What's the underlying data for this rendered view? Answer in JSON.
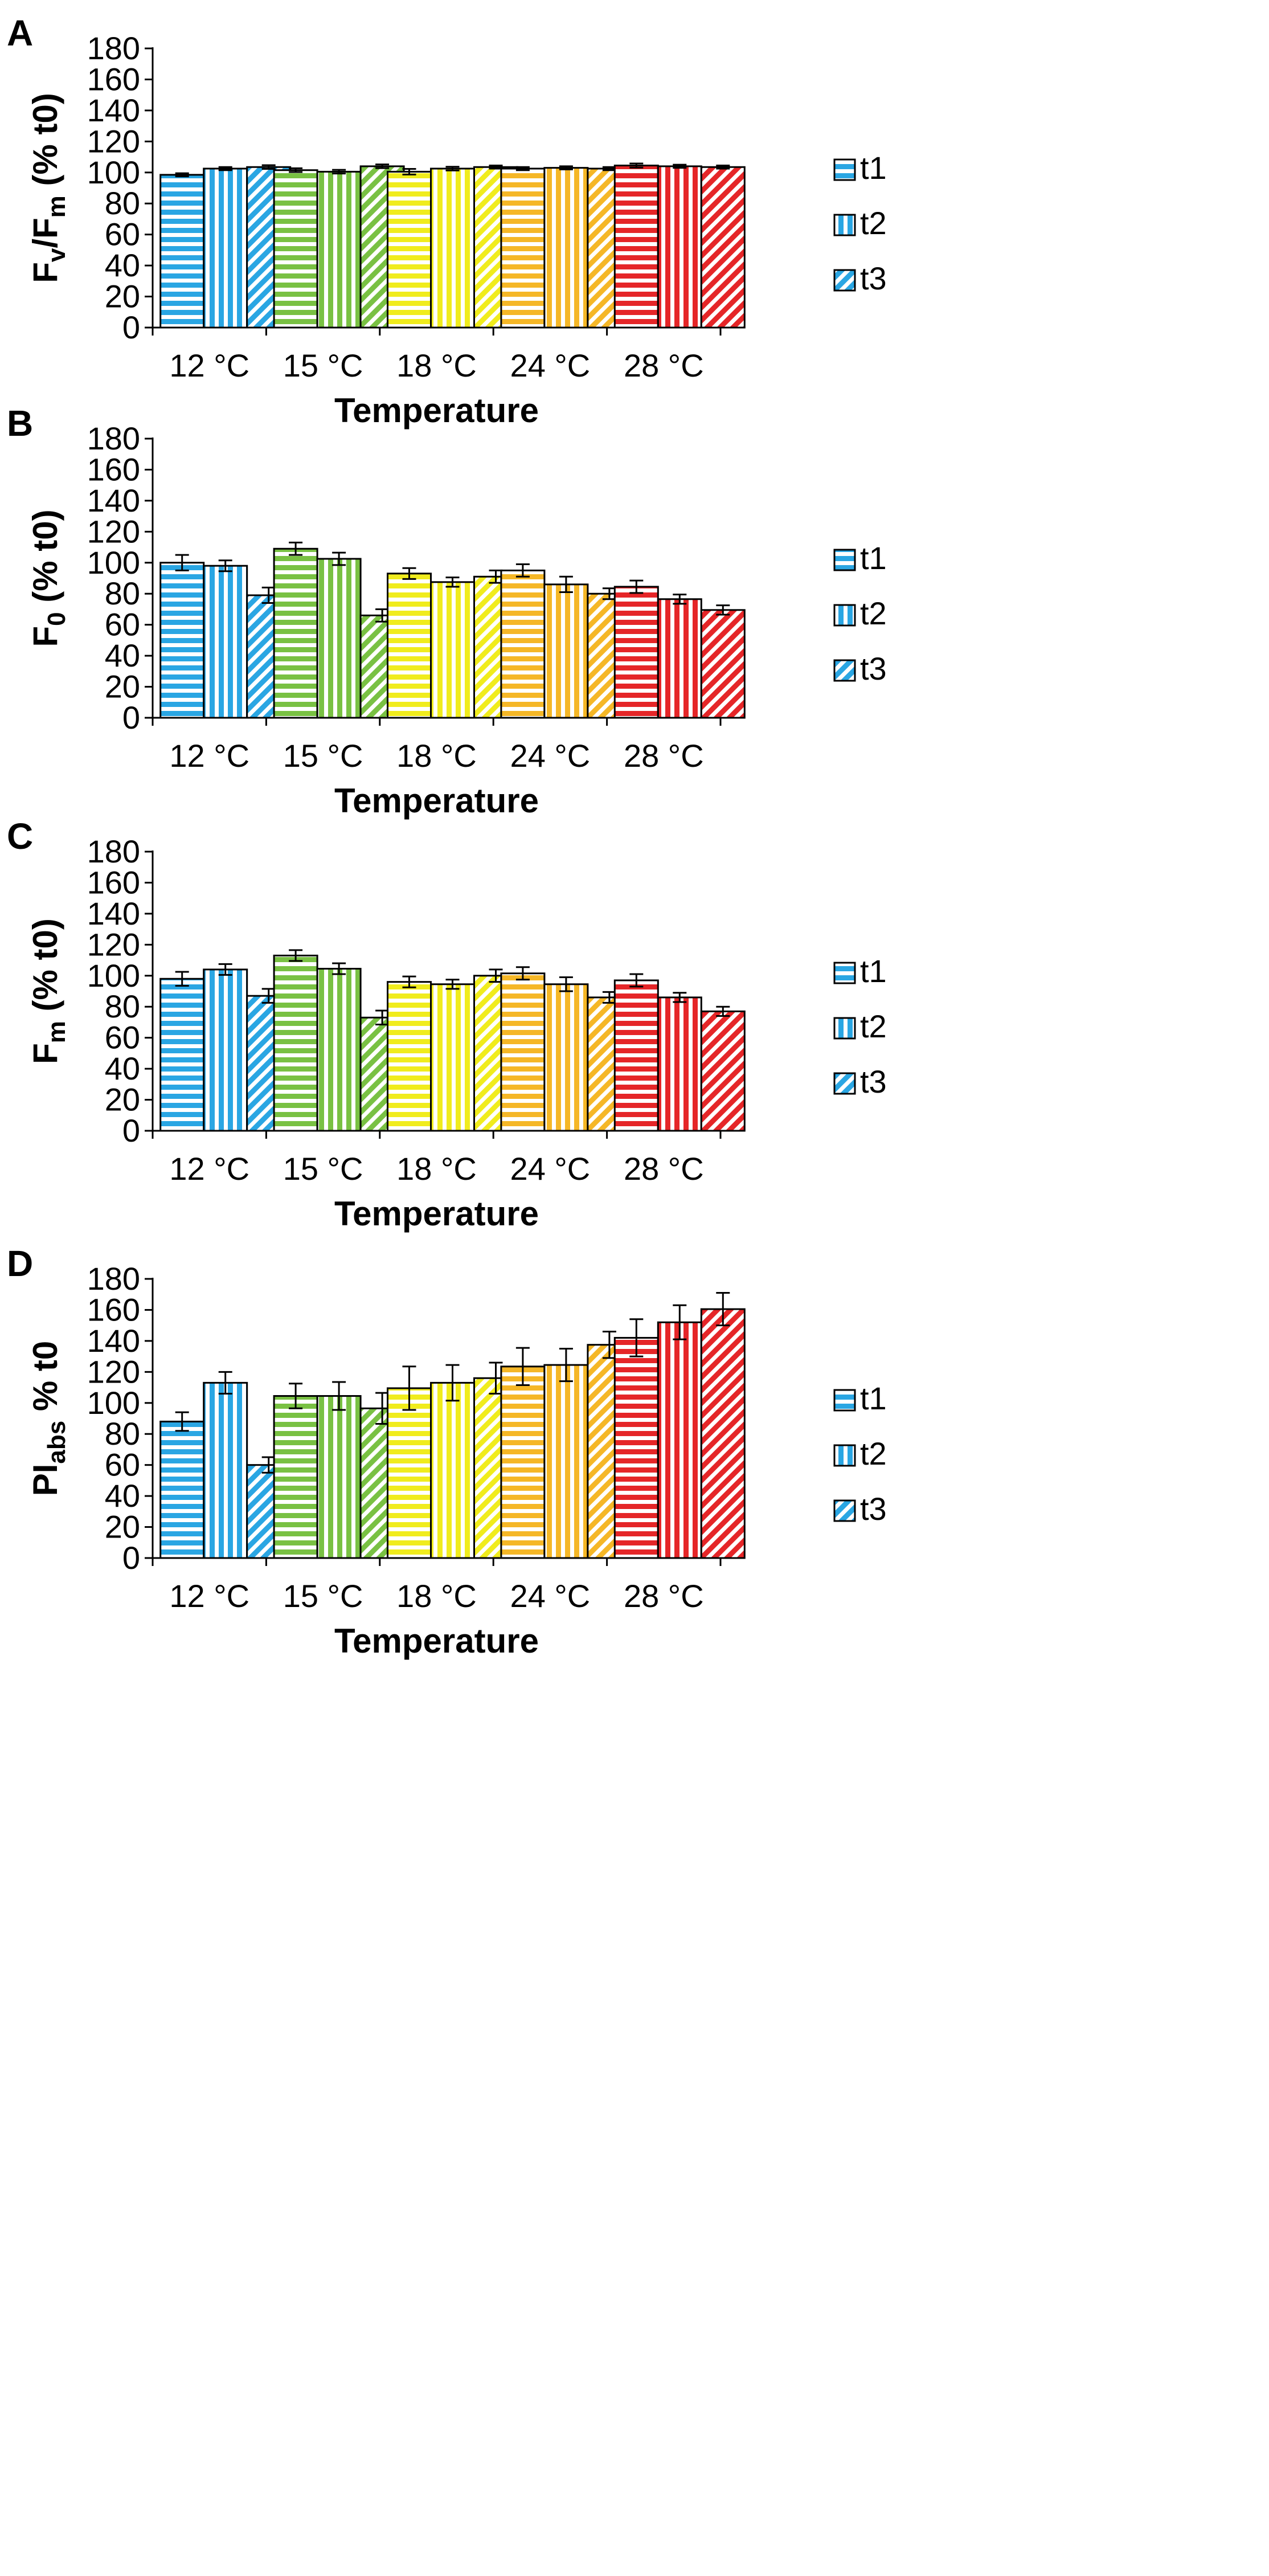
{
  "chart_data": [
    {
      "panel": "A",
      "type": "bar",
      "ylabel": "Fv/Fm (% t0)",
      "ylabel_parts": [
        {
          "text": "F",
          "sub": false
        },
        {
          "text": "v",
          "sub": true
        },
        {
          "text": "/F",
          "sub": false
        },
        {
          "text": "m",
          "sub": true
        },
        {
          "text": " (% t0)",
          "sub": false
        }
      ],
      "xlabel": "Temperature",
      "categories": [
        "12 °C",
        "15 °C",
        "18 °C",
        "24 °C",
        "28 °C"
      ],
      "ylim": [
        0,
        180
      ],
      "yticks": [
        0,
        20,
        40,
        60,
        80,
        100,
        120,
        140,
        160,
        180
      ],
      "series": [
        {
          "name": "t1",
          "pattern": "horizontal",
          "values": [
            98.5,
            101.5,
            100.5,
            102.5,
            104.5
          ],
          "errors": [
            1.0,
            1.2,
            1.8,
            1.0,
            1.3
          ]
        },
        {
          "name": "t2",
          "pattern": "vertical",
          "values": [
            102.5,
            100.5,
            102.5,
            103.0,
            104.0
          ],
          "errors": [
            1.0,
            1.2,
            1.2,
            1.0,
            1.0
          ]
        },
        {
          "name": "t3",
          "pattern": "diagonal",
          "values": [
            103.5,
            104.0,
            103.5,
            102.5,
            103.5
          ],
          "errors": [
            1.2,
            1.2,
            1.0,
            1.0,
            1.0
          ]
        }
      ]
    },
    {
      "panel": "B",
      "type": "bar",
      "ylabel": "F0 (% t0)",
      "ylabel_parts": [
        {
          "text": "F",
          "sub": false
        },
        {
          "text": "0",
          "sub": true
        },
        {
          "text": " (% t0)",
          "sub": false
        }
      ],
      "xlabel": "Temperature",
      "categories": [
        "12 °C",
        "15 °C",
        "18 °C",
        "24 °C",
        "28 °C"
      ],
      "ylim": [
        0,
        180
      ],
      "yticks": [
        0,
        20,
        40,
        60,
        80,
        100,
        120,
        140,
        160,
        180
      ],
      "series": [
        {
          "name": "t1",
          "pattern": "horizontal",
          "values": [
            100,
            109,
            93,
            95,
            84.5
          ],
          "errors": [
            5,
            4,
            3.5,
            4,
            4
          ]
        },
        {
          "name": "t2",
          "pattern": "vertical",
          "values": [
            98,
            102.5,
            87.5,
            86,
            76.5
          ],
          "errors": [
            3.5,
            4,
            3,
            5,
            3
          ]
        },
        {
          "name": "t3",
          "pattern": "diagonal",
          "values": [
            79,
            66,
            91,
            80,
            69.5
          ],
          "errors": [
            5,
            4,
            4,
            3.5,
            3
          ]
        }
      ]
    },
    {
      "panel": "C",
      "type": "bar",
      "ylabel": "Fm (% t0)",
      "ylabel_parts": [
        {
          "text": "F",
          "sub": false
        },
        {
          "text": "m",
          "sub": true
        },
        {
          "text": " (% t0)",
          "sub": false
        }
      ],
      "xlabel": "Temperature",
      "categories": [
        "12 °C",
        "15 °C",
        "18 °C",
        "24 °C",
        "28 °C"
      ],
      "ylim": [
        0,
        180
      ],
      "yticks": [
        0,
        20,
        40,
        60,
        80,
        100,
        120,
        140,
        160,
        180
      ],
      "series": [
        {
          "name": "t1",
          "pattern": "horizontal",
          "values": [
            98,
            113,
            96,
            101.5,
            97
          ],
          "errors": [
            4.5,
            3.5,
            3.5,
            4,
            4
          ]
        },
        {
          "name": "t2",
          "pattern": "vertical",
          "values": [
            104,
            104.5,
            94.5,
            94.5,
            86
          ],
          "errors": [
            3.5,
            3.5,
            3,
            4.5,
            3
          ]
        },
        {
          "name": "t3",
          "pattern": "diagonal",
          "values": [
            87,
            73,
            100,
            86,
            77
          ],
          "errors": [
            4.5,
            4.5,
            4,
            3.5,
            3
          ]
        }
      ]
    },
    {
      "panel": "D",
      "type": "bar",
      "ylabel": "PIabs % t0",
      "ylabel_parts": [
        {
          "text": "PI",
          "sub": false
        },
        {
          "text": "abs",
          "sub": true
        },
        {
          "text": " % t0",
          "sub": false
        }
      ],
      "xlabel": "Temperature",
      "categories": [
        "12 °C",
        "15 °C",
        "18 °C",
        "24 °C",
        "28 °C"
      ],
      "ylim": [
        0,
        180
      ],
      "yticks": [
        0,
        20,
        40,
        60,
        80,
        100,
        120,
        140,
        160,
        180
      ],
      "series": [
        {
          "name": "t1",
          "pattern": "horizontal",
          "values": [
            88,
            104.5,
            109.5,
            123.5,
            142
          ],
          "errors": [
            6,
            8,
            14,
            12,
            12
          ]
        },
        {
          "name": "t2",
          "pattern": "vertical",
          "values": [
            113,
            104.5,
            113,
            124.5,
            152
          ],
          "errors": [
            7,
            9,
            11.5,
            10.5,
            11
          ]
        },
        {
          "name": "t3",
          "pattern": "diagonal",
          "values": [
            60,
            96.5,
            116,
            137.5,
            160.5
          ],
          "errors": [
            5,
            10,
            10,
            8.5,
            10.5
          ]
        }
      ]
    }
  ],
  "legend_labels": [
    "t1",
    "t2",
    "t3"
  ],
  "category_colors": [
    "#2aa6e3",
    "#79c143",
    "#f0ec1d",
    "#f5b727",
    "#e52628"
  ],
  "legend_color": "#2aa6e3"
}
